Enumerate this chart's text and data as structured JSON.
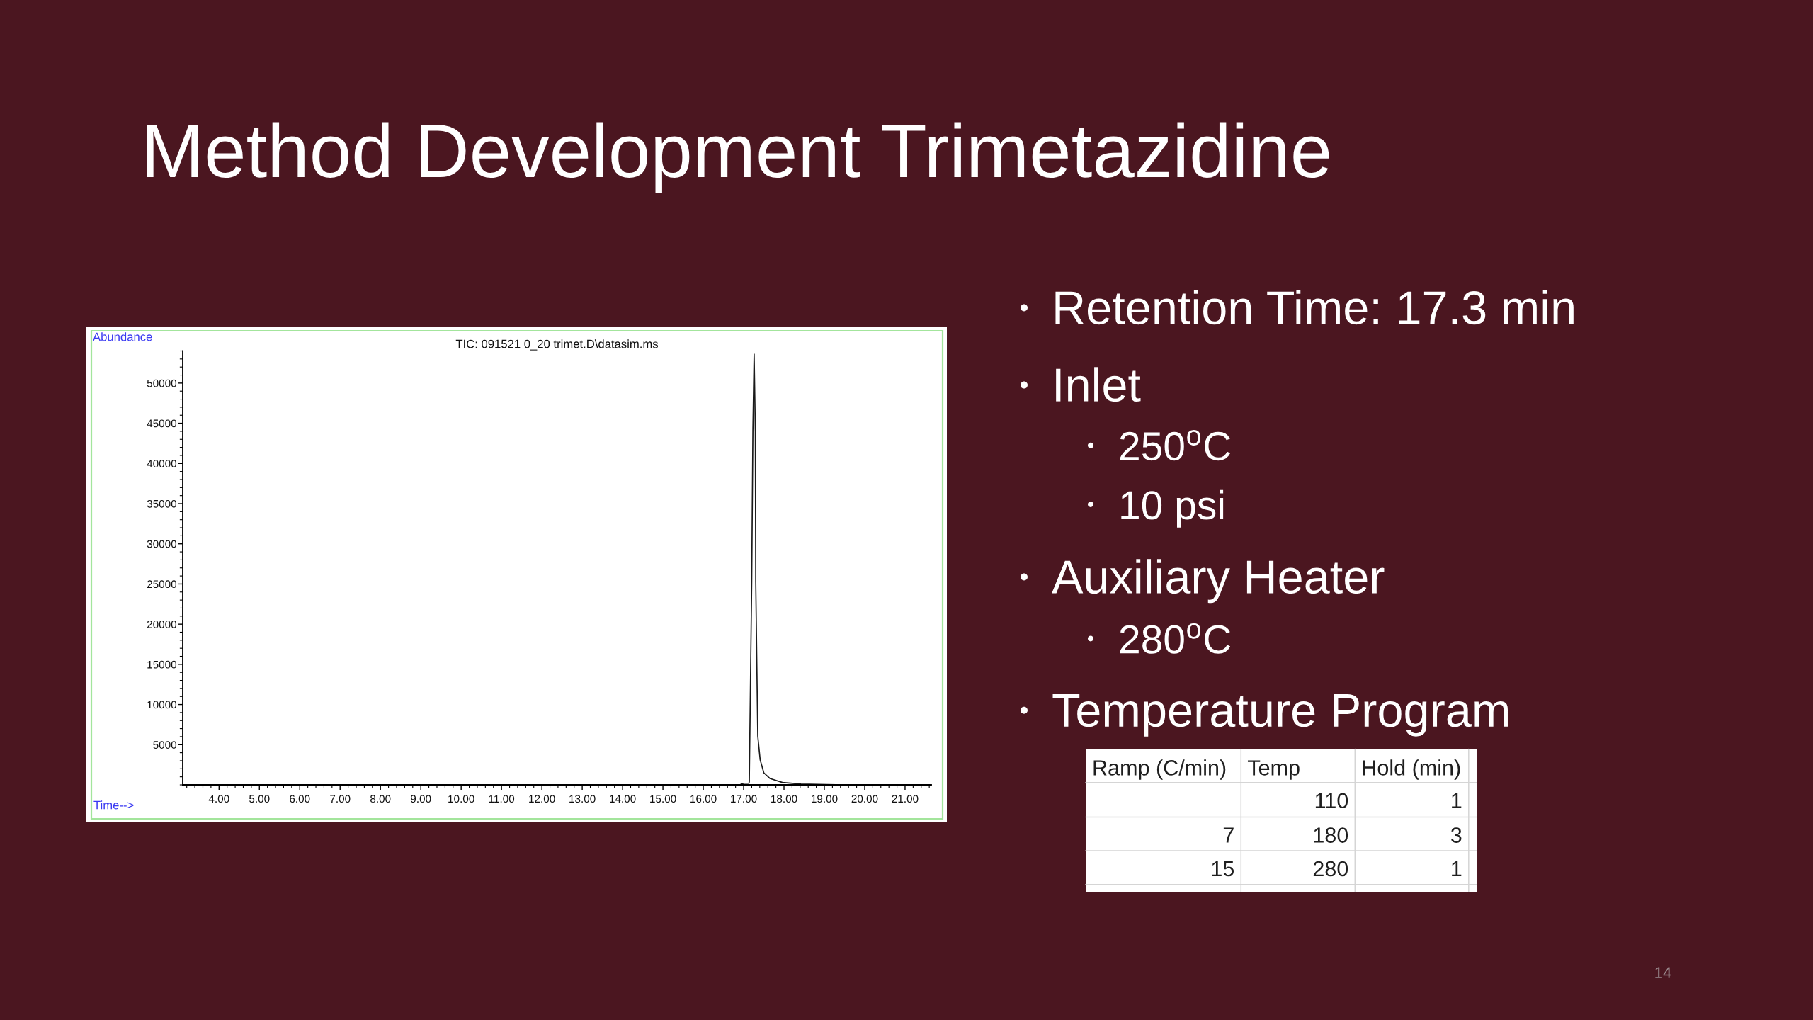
{
  "chart_data": [
    {
      "type": "line",
      "title": "Method Development Trimetazidine",
      "subtitle": "TIC: 091521 0_20 trimet.D\\datasim.ms",
      "xlabel": "Time-->",
      "ylabel": "Abundance",
      "x": [
        3.15,
        6.0,
        9.0,
        12.0,
        15.0,
        16.9,
        17.0,
        17.13,
        17.14,
        17.2,
        17.23,
        17.26,
        17.29,
        17.3,
        17.33,
        17.35,
        17.41,
        17.5,
        17.65,
        17.96,
        18.42,
        19.5,
        21.6
      ],
      "series": [
        {
          "color": "#1a1a1a",
          "values": [
            0,
            0,
            0,
            0,
            0,
            0,
            200,
            200,
            400,
            25300,
            44400,
            53600,
            44000,
            25300,
            13800,
            6100,
            3100,
            1500,
            800,
            300,
            100,
            0,
            0
          ]
        }
      ],
      "xlim": [
        3.1,
        21.65
      ],
      "ylim": [
        0,
        54000
      ],
      "xticks": [
        {
          "value": 4,
          "label": "4.00"
        },
        {
          "value": 5,
          "label": "5.00"
        },
        {
          "value": 6,
          "label": "6.00"
        },
        {
          "value": 7,
          "label": "7.00"
        },
        {
          "value": 8,
          "label": "8.00"
        },
        {
          "value": 9,
          "label": "9.00"
        },
        {
          "value": 10,
          "label": "10.00"
        },
        {
          "value": 11,
          "label": "11.00"
        },
        {
          "value": 12,
          "label": "12.00"
        },
        {
          "value": 13,
          "label": "13.00"
        },
        {
          "value": 14,
          "label": "14.00"
        },
        {
          "value": 15,
          "label": "15.00"
        },
        {
          "value": 16,
          "label": "16.00"
        },
        {
          "value": 17,
          "label": "17.00"
        },
        {
          "value": 18,
          "label": "18.00"
        },
        {
          "value": 19,
          "label": "19.00"
        },
        {
          "value": 20,
          "label": "20.00"
        },
        {
          "value": 21,
          "label": "21.00"
        }
      ],
      "yticks": [
        5000,
        10000,
        15000,
        20000,
        25000,
        30000,
        35000,
        40000,
        45000,
        50000
      ],
      "grid": false,
      "line_style": "solid"
    },
    {
      "type": "other",
      "annotations": [
        "Retention Time: 17.3 min",
        "Inlet",
        "250$^{o}$C",
        "10 psi",
        "Auxiliary Heater",
        "280$^{o}$C",
        "Temperature Program",
        "14"
      ],
      "categories": [
        "Ramp (C/min)",
        "Temp",
        "Hold (min)"
      ],
      "cell_labels": [
        [
          null,
          "110",
          "1"
        ],
        [
          "7",
          "180",
          "3"
        ],
        [
          "15",
          "280",
          "1"
        ]
      ]
    }
  ]
}
